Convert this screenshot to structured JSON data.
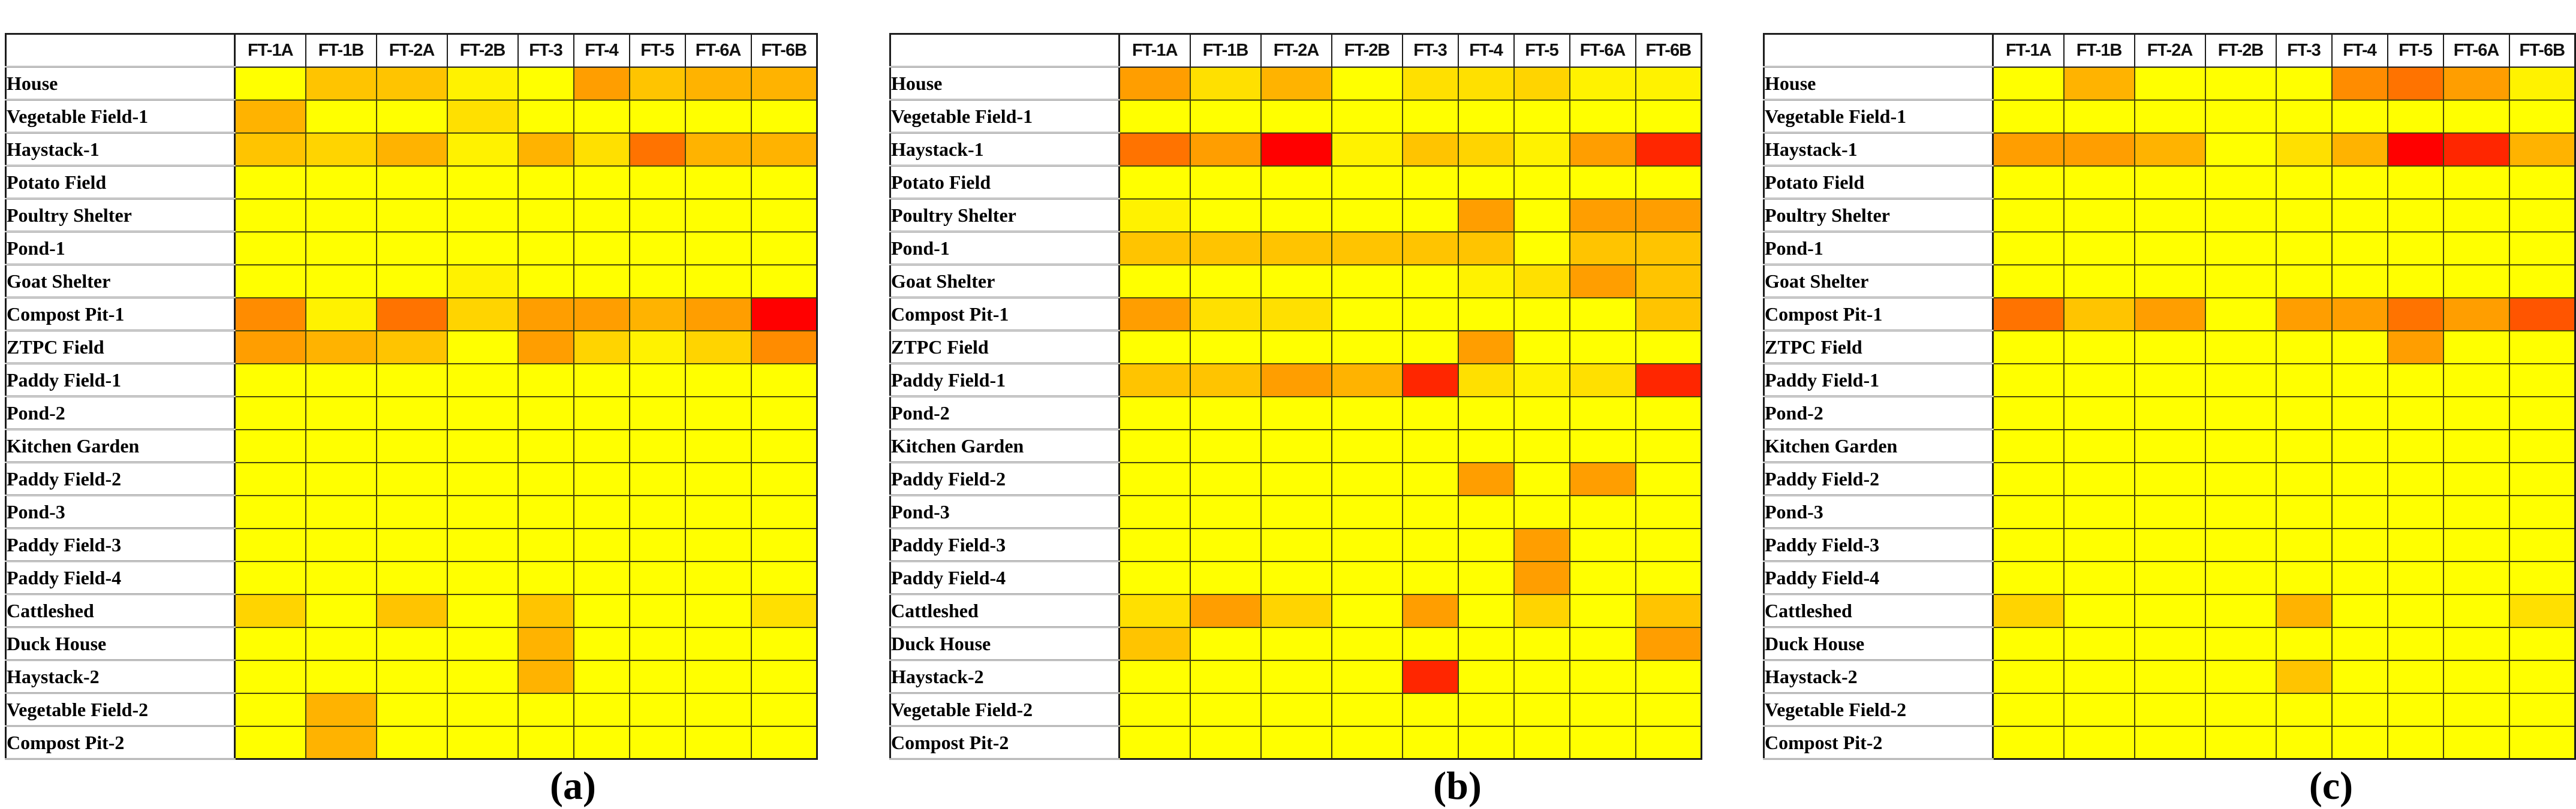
{
  "figure": {
    "panel_labels": [
      "(a)",
      "(b)",
      "(c)"
    ]
  },
  "chart_data": [
    {
      "type": "heatmap",
      "panel_label": "(a)",
      "legend_position": "none",
      "grid": "on",
      "x_categories": [
        "FT-1A",
        "FT-1B",
        "FT-2A",
        "FT-2B",
        "FT-3",
        "FT-4",
        "FT-5",
        "FT-6A",
        "FT-6B"
      ],
      "y_categories": [
        "House",
        "Vegetable Field-1",
        "Haystack-1",
        "Potato Field",
        "Poultry Shelter",
        "Pond-1",
        "Goat Shelter",
        "Compost Pit-1",
        "ZTPC Field",
        "Paddy Field-1",
        "Pond-2",
        "Kitchen Garden",
        "Paddy Field-2",
        "Pond-3",
        "Paddy Field-3",
        "Paddy Field-4",
        "Cattleshed",
        "Duck House",
        "Haystack-2",
        "Vegetable Field-2",
        "Compost Pit-2"
      ],
      "color_levels": {
        "Y": "#FFFF00",
        "Y2": "#FFF200",
        "G1": "#FFE000",
        "G2": "#FFD400",
        "A": "#FFC400",
        "A2": "#FFB300",
        "O": "#FF9E00",
        "O2": "#FF8C00",
        "D": "#FF7300",
        "D2": "#FF5500",
        "R2": "#FF2600",
        "R": "#FF0000"
      },
      "cells": [
        [
          "Y",
          "A",
          "A",
          "Y2",
          "Y",
          "O",
          "A",
          "A2",
          "A2"
        ],
        [
          "A2",
          "Y",
          "Y",
          "G1",
          "Y",
          "Y",
          "Y",
          "Y",
          "Y"
        ],
        [
          "A",
          "G2",
          "A2",
          "Y2",
          "A2",
          "G1",
          "D",
          "A2",
          "A2"
        ],
        [
          "Y",
          "Y",
          "Y",
          "Y",
          "Y",
          "Y",
          "Y",
          "Y",
          "Y"
        ],
        [
          "Y",
          "Y",
          "Y",
          "Y",
          "Y",
          "Y",
          "Y",
          "Y",
          "Y"
        ],
        [
          "Y",
          "Y",
          "Y",
          "Y",
          "Y",
          "Y",
          "Y",
          "Y",
          "Y"
        ],
        [
          "Y",
          "Y",
          "Y",
          "Y2",
          "Y",
          "Y",
          "Y",
          "Y",
          "Y"
        ],
        [
          "O2",
          "Y2",
          "D",
          "G2",
          "O",
          "O",
          "A2",
          "O",
          "R"
        ],
        [
          "O",
          "A2",
          "A",
          "Y",
          "O",
          "G2",
          "Y2",
          "G2",
          "O2"
        ],
        [
          "Y",
          "Y",
          "Y",
          "Y",
          "Y",
          "Y",
          "Y",
          "Y",
          "Y"
        ],
        [
          "Y",
          "Y",
          "Y",
          "Y",
          "Y",
          "Y",
          "Y",
          "Y",
          "Y"
        ],
        [
          "Y",
          "Y",
          "Y",
          "Y",
          "Y",
          "Y",
          "Y",
          "Y",
          "Y"
        ],
        [
          "Y",
          "Y",
          "Y",
          "Y",
          "Y",
          "Y",
          "Y",
          "Y",
          "Y"
        ],
        [
          "Y",
          "Y",
          "Y",
          "Y",
          "Y",
          "Y",
          "Y",
          "Y",
          "Y"
        ],
        [
          "Y",
          "Y",
          "Y",
          "Y",
          "Y",
          "Y",
          "Y",
          "Y",
          "Y"
        ],
        [
          "Y",
          "Y",
          "Y",
          "Y",
          "Y",
          "Y",
          "Y",
          "Y",
          "Y"
        ],
        [
          "G2",
          "Y",
          "A",
          "Y",
          "A",
          "Y",
          "Y",
          "Y",
          "G1"
        ],
        [
          "Y",
          "Y",
          "Y",
          "Y",
          "A2",
          "Y",
          "Y",
          "Y",
          "Y"
        ],
        [
          "Y",
          "Y",
          "Y",
          "Y",
          "A2",
          "Y",
          "Y",
          "Y",
          "Y"
        ],
        [
          "Y",
          "A2",
          "Y",
          "Y",
          "Y",
          "Y",
          "Y",
          "Y",
          "Y"
        ],
        [
          "Y",
          "A2",
          "Y",
          "Y",
          "Y",
          "Y",
          "Y",
          "Y",
          "Y"
        ]
      ]
    },
    {
      "type": "heatmap",
      "panel_label": "(b)",
      "legend_position": "none",
      "grid": "on",
      "x_categories": [
        "FT-1A",
        "FT-1B",
        "FT-2A",
        "FT-2B",
        "FT-3",
        "FT-4",
        "FT-5",
        "FT-6A",
        "FT-6B"
      ],
      "y_categories": [
        "House",
        "Vegetable Field-1",
        "Haystack-1",
        "Potato Field",
        "Poultry Shelter",
        "Pond-1",
        "Goat Shelter",
        "Compost Pit-1",
        "ZTPC Field",
        "Paddy Field-1",
        "Pond-2",
        "Kitchen Garden",
        "Paddy Field-2",
        "Pond-3",
        "Paddy Field-3",
        "Paddy Field-4",
        "Cattleshed",
        "Duck House",
        "Haystack-2",
        "Vegetable Field-2",
        "Compost Pit-2"
      ],
      "color_levels": {
        "Y": "#FFFF00",
        "Y2": "#FFF200",
        "G1": "#FFE000",
        "G2": "#FFD400",
        "A": "#FFC400",
        "A2": "#FFB300",
        "O": "#FF9E00",
        "O2": "#FF8C00",
        "D": "#FF7300",
        "D2": "#FF5500",
        "R2": "#FF2600",
        "R": "#FF0000"
      },
      "cells": [
        [
          "O",
          "G1",
          "A2",
          "Y",
          "G1",
          "G1",
          "G2",
          "Y2",
          "Y2"
        ],
        [
          "Y",
          "Y",
          "Y",
          "Y",
          "Y",
          "Y",
          "Y",
          "Y",
          "Y"
        ],
        [
          "D",
          "O",
          "R",
          "Y2",
          "A",
          "G2",
          "Y2",
          "O",
          "R2"
        ],
        [
          "Y",
          "Y",
          "Y",
          "Y",
          "Y",
          "Y",
          "Y",
          "Y",
          "Y"
        ],
        [
          "Y2",
          "Y",
          "Y",
          "Y",
          "Y",
          "O",
          "Y",
          "O",
          "O"
        ],
        [
          "A",
          "A",
          "A",
          "A",
          "A",
          "A",
          "Y",
          "A",
          "A"
        ],
        [
          "Y",
          "Y",
          "Y",
          "Y",
          "Y",
          "Y2",
          "G1",
          "O",
          "A"
        ],
        [
          "O",
          "G1",
          "G1",
          "Y",
          "Y",
          "Y",
          "Y",
          "Y",
          "A"
        ],
        [
          "Y",
          "Y",
          "Y",
          "Y",
          "Y",
          "O",
          "Y",
          "Y",
          "Y"
        ],
        [
          "A",
          "A",
          "O",
          "A2",
          "R2",
          "G1",
          "Y2",
          "G1",
          "R2"
        ],
        [
          "Y",
          "Y",
          "Y",
          "Y",
          "Y",
          "Y",
          "Y",
          "Y",
          "Y"
        ],
        [
          "Y",
          "Y",
          "Y",
          "Y",
          "Y",
          "Y",
          "Y",
          "Y",
          "Y"
        ],
        [
          "Y",
          "Y",
          "Y",
          "Y",
          "Y",
          "O",
          "Y",
          "O",
          "Y"
        ],
        [
          "Y",
          "Y",
          "Y",
          "Y",
          "Y",
          "Y",
          "Y",
          "Y",
          "Y"
        ],
        [
          "Y",
          "Y",
          "Y",
          "Y",
          "Y",
          "Y",
          "O",
          "Y",
          "Y"
        ],
        [
          "Y",
          "Y",
          "Y",
          "Y",
          "Y",
          "Y",
          "O",
          "Y",
          "Y"
        ],
        [
          "G1",
          "O",
          "G2",
          "Y",
          "O",
          "Y",
          "G2",
          "Y",
          "A"
        ],
        [
          "A",
          "Y",
          "Y",
          "Y",
          "Y",
          "Y",
          "Y",
          "Y",
          "O"
        ],
        [
          "Y",
          "Y",
          "Y",
          "Y",
          "R2",
          "Y",
          "Y",
          "Y",
          "Y"
        ],
        [
          "Y",
          "Y",
          "Y",
          "Y",
          "Y",
          "Y",
          "Y",
          "Y",
          "Y"
        ],
        [
          "Y",
          "Y",
          "Y",
          "Y",
          "Y",
          "Y",
          "Y",
          "Y",
          "Y"
        ]
      ]
    },
    {
      "type": "heatmap",
      "panel_label": "(c)",
      "legend_position": "none",
      "grid": "on",
      "x_categories": [
        "FT-1A",
        "FT-1B",
        "FT-2A",
        "FT-2B",
        "FT-3",
        "FT-4",
        "FT-5",
        "FT-6A",
        "FT-6B"
      ],
      "y_categories": [
        "House",
        "Vegetable Field-1",
        "Haystack-1",
        "Potato Field",
        "Poultry Shelter",
        "Pond-1",
        "Goat Shelter",
        "Compost Pit-1",
        "ZTPC Field",
        "Paddy Field-1",
        "Pond-2",
        "Kitchen Garden",
        "Paddy Field-2",
        "Pond-3",
        "Paddy Field-3",
        "Paddy Field-4",
        "Cattleshed",
        "Duck House",
        "Haystack-2",
        "Vegetable Field-2",
        "Compost Pit-2"
      ],
      "color_levels": {
        "Y": "#FFFF00",
        "Y2": "#FFF200",
        "G1": "#FFE000",
        "G2": "#FFD400",
        "A": "#FFC400",
        "A2": "#FFB300",
        "O": "#FF9E00",
        "O2": "#FF8C00",
        "D": "#FF7300",
        "D2": "#FF5500",
        "R2": "#FF2600",
        "R": "#FF0000"
      },
      "cells": [
        [
          "Y",
          "A2",
          "Y",
          "Y",
          "Y",
          "O2",
          "D",
          "O",
          "Y2"
        ],
        [
          "Y",
          "Y",
          "Y",
          "Y",
          "Y",
          "Y",
          "Y",
          "Y",
          "Y"
        ],
        [
          "O",
          "O",
          "A2",
          "Y",
          "G1",
          "A2",
          "R",
          "R2",
          "A2"
        ],
        [
          "Y",
          "Y",
          "Y",
          "Y",
          "Y",
          "Y",
          "Y",
          "Y",
          "Y"
        ],
        [
          "Y",
          "Y",
          "Y",
          "Y",
          "Y",
          "Y",
          "Y",
          "Y",
          "Y"
        ],
        [
          "Y",
          "Y",
          "Y",
          "Y",
          "Y",
          "Y",
          "Y",
          "Y",
          "Y"
        ],
        [
          "Y",
          "Y",
          "Y",
          "Y",
          "Y",
          "Y",
          "Y",
          "Y",
          "Y"
        ],
        [
          "D",
          "A",
          "O",
          "Y",
          "O",
          "O",
          "D",
          "O",
          "D2"
        ],
        [
          "Y",
          "Y",
          "Y",
          "Y",
          "Y",
          "Y",
          "O",
          "Y",
          "Y"
        ],
        [
          "Y",
          "Y",
          "Y",
          "Y",
          "Y",
          "Y",
          "Y",
          "Y",
          "Y"
        ],
        [
          "Y",
          "Y",
          "Y",
          "Y",
          "Y",
          "Y",
          "Y",
          "Y",
          "Y"
        ],
        [
          "Y",
          "Y",
          "Y",
          "Y",
          "Y",
          "Y",
          "Y",
          "Y",
          "Y"
        ],
        [
          "Y",
          "Y",
          "Y",
          "Y",
          "Y",
          "Y",
          "Y",
          "Y",
          "Y"
        ],
        [
          "Y",
          "Y",
          "Y",
          "Y",
          "Y",
          "Y",
          "Y",
          "Y",
          "Y"
        ],
        [
          "Y",
          "Y",
          "Y",
          "Y",
          "Y",
          "Y",
          "Y",
          "Y",
          "Y"
        ],
        [
          "Y",
          "Y",
          "Y",
          "Y",
          "Y",
          "Y",
          "Y",
          "Y",
          "Y"
        ],
        [
          "G2",
          "Y",
          "Y",
          "Y",
          "A2",
          "Y",
          "Y",
          "Y",
          "G1"
        ],
        [
          "Y",
          "Y",
          "Y",
          "Y",
          "Y",
          "Y",
          "Y",
          "Y",
          "Y"
        ],
        [
          "Y",
          "Y",
          "Y",
          "Y",
          "A",
          "Y",
          "Y",
          "Y",
          "Y"
        ],
        [
          "Y",
          "Y",
          "Y",
          "Y",
          "Y",
          "Y",
          "Y",
          "Y",
          "Y"
        ],
        [
          "Y",
          "Y",
          "Y",
          "Y",
          "Y",
          "Y",
          "Y",
          "Y",
          "Y"
        ]
      ]
    }
  ]
}
